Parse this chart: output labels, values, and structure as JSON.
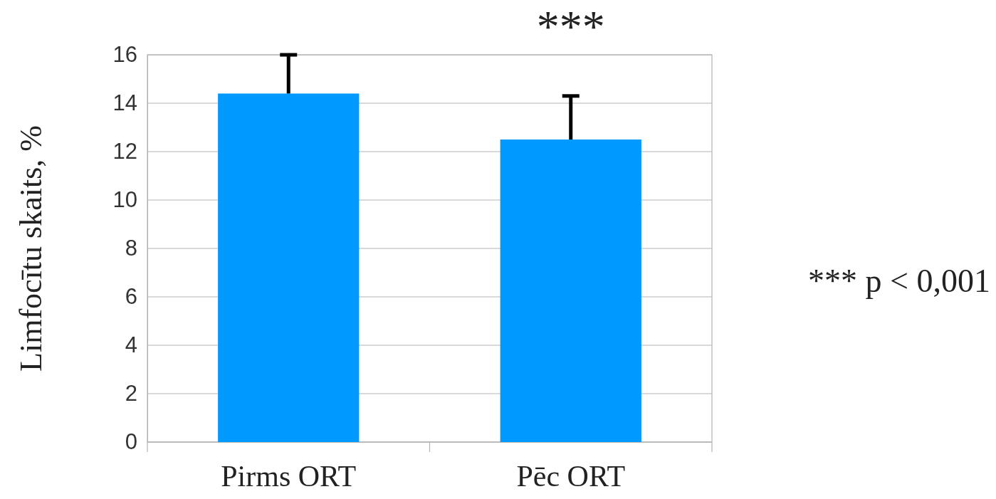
{
  "chart_data": {
    "type": "bar",
    "ylabel": "Limfocītu skaits, %",
    "categories": [
      "Pirms ORT",
      "Pēc ORT"
    ],
    "values": [
      14.4,
      12.5
    ],
    "color": "#0099ff",
    "errors": [
      [
        14.4,
        16.0
      ],
      [
        12.5,
        14.3
      ]
    ],
    "ylim": [
      0,
      16
    ],
    "yticks": [
      0,
      2,
      4,
      6,
      8,
      10,
      12,
      14,
      16
    ],
    "grid": "y",
    "annotations": [
      {
        "text": "***",
        "x": "Pēc ORT",
        "y": 14.3
      },
      "*** p < 0,001"
    ]
  }
}
